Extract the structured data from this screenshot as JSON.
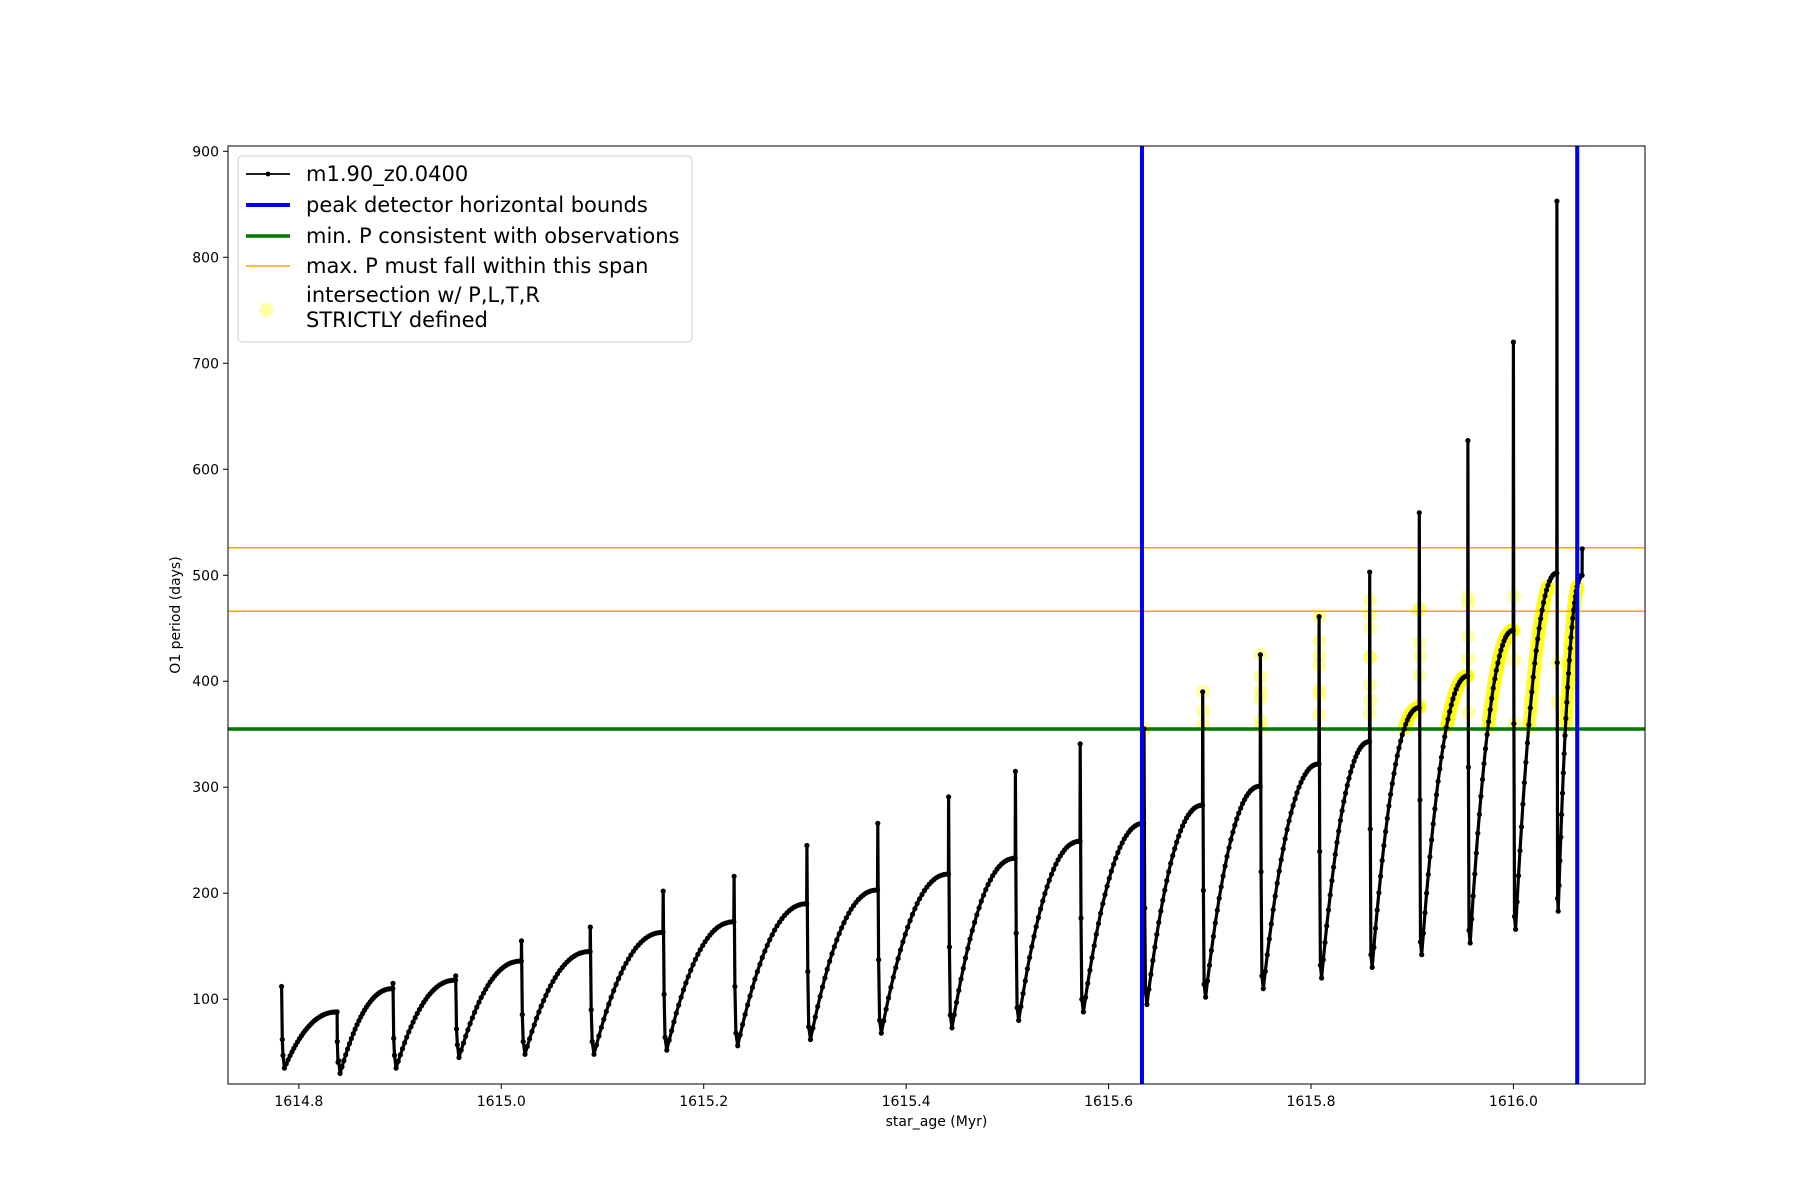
{
  "chart_data": {
    "type": "line",
    "title": "",
    "xlabel": "star_age (Myr)",
    "ylabel": "O1 period (days)",
    "xlim": [
      1614.73,
      1616.13
    ],
    "ylim": [
      20,
      905
    ],
    "x_ticks": [
      1614.8,
      1615.0,
      1615.2,
      1615.4,
      1615.6,
      1615.8,
      1616.0
    ],
    "x_tick_labels": [
      "1614.8",
      "1615.0",
      "1615.2",
      "1615.4",
      "1615.6",
      "1615.8",
      "1616.0"
    ],
    "y_ticks": [
      100,
      200,
      300,
      400,
      500,
      600,
      700,
      800,
      900
    ],
    "y_tick_labels": [
      "100",
      "200",
      "300",
      "400",
      "500",
      "600",
      "700",
      "800",
      "900"
    ],
    "grid": false,
    "legend_position": "top-left",
    "series": [
      {
        "name": "m1.90_z0.0400",
        "color": "#000000",
        "style": "line-with-dot-markers",
        "pulses": [
          {
            "start": 1614.783,
            "spike": 112,
            "min": 35,
            "peak": 88
          },
          {
            "start": 1614.838,
            "spike": 60,
            "min": 30,
            "peak": 110
          },
          {
            "start": 1614.893,
            "spike": 115,
            "min": 35,
            "peak": 118
          },
          {
            "start": 1614.955,
            "spike": 122,
            "min": 45,
            "peak": 136
          },
          {
            "start": 1615.02,
            "spike": 155,
            "min": 48,
            "peak": 145
          },
          {
            "start": 1615.088,
            "spike": 168,
            "min": 48,
            "peak": 163
          },
          {
            "start": 1615.16,
            "spike": 202,
            "min": 52,
            "peak": 173
          },
          {
            "start": 1615.23,
            "spike": 216,
            "min": 56,
            "peak": 190
          },
          {
            "start": 1615.302,
            "spike": 245,
            "min": 62,
            "peak": 203
          },
          {
            "start": 1615.372,
            "spike": 266,
            "min": 68,
            "peak": 218
          },
          {
            "start": 1615.442,
            "spike": 291,
            "min": 73,
            "peak": 233
          },
          {
            "start": 1615.508,
            "spike": 315,
            "min": 80,
            "peak": 249
          },
          {
            "start": 1615.572,
            "spike": 341,
            "min": 88,
            "peak": 266
          },
          {
            "start": 1615.635,
            "spike": 355,
            "min": 95,
            "peak": 283
          },
          {
            "start": 1615.693,
            "spike": 390,
            "min": 102,
            "peak": 301
          },
          {
            "start": 1615.75,
            "spike": 425,
            "min": 110,
            "peak": 322
          },
          {
            "start": 1615.808,
            "spike": 461,
            "min": 120,
            "peak": 343
          },
          {
            "start": 1615.858,
            "spike": 503,
            "min": 130,
            "peak": 375
          },
          {
            "start": 1615.907,
            "spike": 559,
            "min": 142,
            "peak": 405
          },
          {
            "start": 1615.955,
            "spike": 627,
            "min": 153,
            "peak": 448
          },
          {
            "start": 1616.0,
            "spike": 720,
            "min": 166,
            "peak": 502
          },
          {
            "start": 1616.043,
            "spike": 853,
            "min": 183,
            "peak": 500
          }
        ],
        "end": {
          "x": 1616.068,
          "y": 525
        }
      }
    ],
    "vertical_lines": {
      "name": "peak detector horizontal bounds",
      "color": "#0000ee",
      "x": [
        1615.633,
        1616.063
      ]
    },
    "min_period_line": {
      "name": "min. P consistent with observations",
      "color": "#007700",
      "y": 355
    },
    "max_period_lines": {
      "name": "max. P must fall within this span",
      "color": "#ffa500",
      "y": [
        466,
        526
      ]
    },
    "intersection_points": {
      "name_line1": "intersection w/ P,L,T,R",
      "name_line2": "STRICTLY defined",
      "color": "#ffff00",
      "y_floor": 355,
      "y_cap": 490
    }
  }
}
